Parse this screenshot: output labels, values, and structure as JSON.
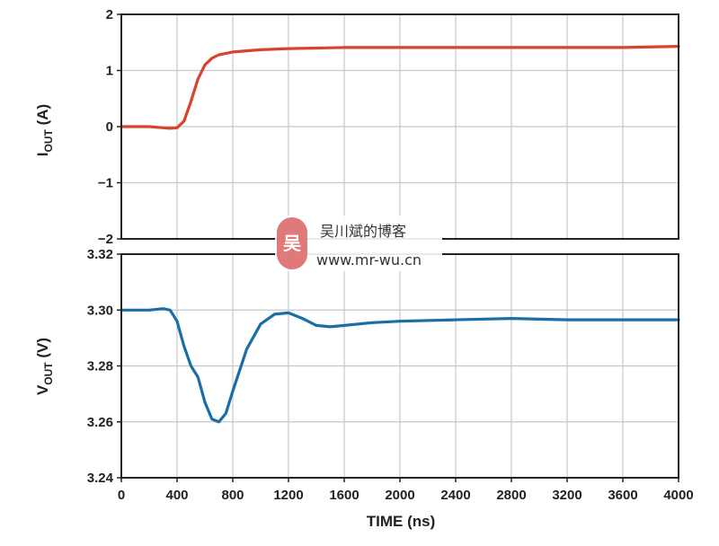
{
  "chart_data": [
    {
      "type": "line",
      "ylabel": "I",
      "ylabel_sub": "OUT",
      "ylabel_unit": " (A)",
      "ylim": [
        -2,
        2
      ],
      "yticks": [
        2,
        1,
        0,
        -1,
        -2
      ],
      "ytick_labels": [
        "2",
        "1",
        "0",
        "−1",
        "−2"
      ],
      "xlim": [
        0,
        4000
      ],
      "grid": true,
      "series": [
        {
          "color": "#d6452b",
          "x": [
            0,
            100,
            200,
            300,
            350,
            400,
            450,
            500,
            550,
            600,
            650,
            700,
            800,
            900,
            1000,
            1200,
            1600,
            2000,
            2400,
            2800,
            3200,
            3600,
            4000
          ],
          "y": [
            0.0,
            0.0,
            0.0,
            -0.02,
            -0.03,
            -0.02,
            0.1,
            0.45,
            0.85,
            1.1,
            1.22,
            1.28,
            1.33,
            1.35,
            1.37,
            1.39,
            1.41,
            1.41,
            1.41,
            1.41,
            1.41,
            1.41,
            1.43
          ]
        }
      ]
    },
    {
      "type": "line",
      "ylabel": "V",
      "ylabel_sub": "OUT",
      "ylabel_unit": " (V)",
      "xlabel": "TIME (ns)",
      "ylim": [
        3.24,
        3.32
      ],
      "yticks": [
        3.32,
        3.3,
        3.28,
        3.26,
        3.24
      ],
      "ytick_labels": [
        "3.32",
        "3.30",
        "3.28",
        "3.26",
        "3.24"
      ],
      "xlim": [
        0,
        4000
      ],
      "xticks": [
        0,
        400,
        800,
        1200,
        1600,
        2000,
        2400,
        2800,
        3200,
        3600,
        4000
      ],
      "xtick_labels": [
        "0",
        "400",
        "800",
        "1200",
        "1600",
        "2000",
        "2400",
        "2800",
        "3200",
        "3600",
        "4000"
      ],
      "grid": true,
      "series": [
        {
          "color": "#1a6ea6",
          "x": [
            0,
            100,
            200,
            300,
            350,
            400,
            450,
            500,
            550,
            600,
            650,
            700,
            750,
            800,
            900,
            1000,
            1100,
            1200,
            1300,
            1400,
            1500,
            1600,
            1800,
            2000,
            2400,
            2800,
            3200,
            3600,
            4000
          ],
          "y": [
            3.3,
            3.3,
            3.3,
            3.3005,
            3.3,
            3.296,
            3.287,
            3.28,
            3.276,
            3.267,
            3.261,
            3.26,
            3.263,
            3.271,
            3.286,
            3.295,
            3.2985,
            3.299,
            3.297,
            3.2945,
            3.294,
            3.2945,
            3.2955,
            3.296,
            3.2965,
            3.297,
            3.2965,
            3.2965,
            3.2965
          ]
        }
      ]
    }
  ],
  "watermark": {
    "logo_char": "吴",
    "line1": "吴川斌的博客",
    "line2": "www.mr-wu.cn",
    "logo_color": "#e07a7a"
  }
}
